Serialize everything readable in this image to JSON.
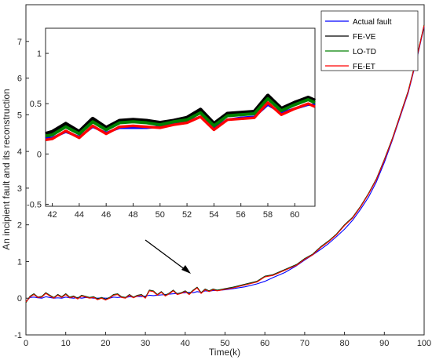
{
  "chart_data": {
    "type": "line",
    "xlabel": "Time(k)",
    "ylabel": "An incipient fault and its reconstruction",
    "xlim": [
      0,
      100
    ],
    "ylim": [
      -1,
      8
    ],
    "xticks": [
      "0",
      "10",
      "20",
      "30",
      "40",
      "50",
      "60",
      "70",
      "80",
      "90",
      "100"
    ],
    "yticks": [
      "-1",
      "0",
      "1",
      "2",
      "3",
      "4",
      "5",
      "6",
      "7"
    ],
    "grid": false,
    "legend_position": "top-right",
    "series": [
      {
        "name": "Actual fault",
        "color": "#0000ff",
        "x": [
          0,
          1,
          2,
          3,
          4,
          5,
          6,
          7,
          8,
          9,
          10,
          11,
          12,
          13,
          14,
          15,
          16,
          17,
          18,
          19,
          20,
          21,
          22,
          23,
          24,
          25,
          26,
          27,
          28,
          29,
          30,
          31,
          32,
          33,
          34,
          35,
          36,
          37,
          38,
          39,
          40,
          41,
          42,
          43,
          44,
          45,
          46,
          47,
          48,
          49,
          50,
          52,
          55,
          58,
          60,
          62,
          65,
          68,
          70,
          72,
          74,
          76,
          78,
          80,
          82,
          84,
          86,
          88,
          90,
          92,
          94,
          96,
          98,
          100
        ],
        "values": [
          -0.1,
          0.02,
          0.03,
          0.01,
          0.0,
          0.04,
          0.02,
          0.0,
          0.01,
          0.0,
          0.03,
          0.01,
          0.0,
          0.02,
          0.0,
          0.02,
          0.01,
          0.0,
          0.0,
          0.01,
          0.0,
          0.0,
          0.03,
          0.02,
          0.03,
          0.02,
          0.04,
          0.03,
          0.05,
          0.04,
          0.06,
          0.08,
          0.07,
          0.08,
          0.09,
          0.1,
          0.11,
          0.12,
          0.13,
          0.14,
          0.15,
          0.16,
          0.15,
          0.18,
          0.16,
          0.2,
          0.19,
          0.21,
          0.21,
          0.22,
          0.23,
          0.26,
          0.31,
          0.39,
          0.46,
          0.56,
          0.7,
          0.89,
          1.04,
          1.18,
          1.33,
          1.49,
          1.68,
          1.88,
          2.12,
          2.42,
          2.75,
          3.17,
          3.7,
          4.3,
          4.95,
          5.6,
          6.45,
          7.4
        ]
      },
      {
        "name": "FE-VE",
        "color": "#000000",
        "x": [
          0,
          1,
          2,
          3,
          4,
          5,
          6,
          7,
          8,
          9,
          10,
          11,
          12,
          13,
          14,
          15,
          16,
          17,
          18,
          19,
          20,
          21,
          22,
          23,
          24,
          25,
          26,
          27,
          28,
          29,
          30,
          31,
          32,
          33,
          34,
          35,
          36,
          37,
          38,
          39,
          40,
          41,
          42,
          43,
          44,
          45,
          46,
          47,
          48,
          49,
          50,
          52,
          55,
          58,
          60,
          62,
          65,
          68,
          70,
          72,
          74,
          76,
          78,
          80,
          82,
          84,
          86,
          88,
          90,
          92,
          94,
          96,
          98,
          100
        ],
        "values": [
          -0.12,
          0.05,
          0.12,
          0.03,
          0.05,
          0.15,
          0.08,
          0.02,
          0.1,
          0.04,
          0.12,
          0.03,
          0.06,
          0.0,
          0.08,
          0.05,
          0.02,
          0.04,
          -0.02,
          0.02,
          -0.03,
          0.02,
          0.1,
          0.12,
          0.04,
          0.02,
          0.1,
          0.03,
          0.08,
          0.1,
          0.02,
          0.22,
          0.2,
          0.1,
          0.18,
          0.08,
          0.14,
          0.22,
          0.12,
          0.15,
          0.2,
          0.12,
          0.22,
          0.3,
          0.15,
          0.25,
          0.2,
          0.25,
          0.22,
          0.24,
          0.26,
          0.3,
          0.38,
          0.46,
          0.6,
          0.64,
          0.78,
          0.92,
          1.08,
          1.2,
          1.4,
          1.56,
          1.75,
          2.0,
          2.2,
          2.5,
          2.85,
          3.25,
          3.78,
          4.35,
          5.0,
          5.65,
          6.5,
          7.45
        ]
      },
      {
        "name": "LO-TD",
        "color": "#008000",
        "x": [
          0,
          1,
          2,
          3,
          4,
          5,
          6,
          7,
          8,
          9,
          10,
          11,
          12,
          13,
          14,
          15,
          16,
          17,
          18,
          19,
          20,
          21,
          22,
          23,
          24,
          25,
          26,
          27,
          28,
          29,
          30,
          31,
          32,
          33,
          34,
          35,
          36,
          37,
          38,
          39,
          40,
          41,
          42,
          43,
          44,
          45,
          46,
          47,
          48,
          49,
          50,
          52,
          55,
          58,
          60,
          62,
          65,
          68,
          70,
          72,
          74,
          76,
          78,
          80,
          82,
          84,
          86,
          88,
          90,
          92,
          94,
          96,
          98,
          100
        ],
        "values": [
          -0.11,
          0.04,
          0.11,
          0.02,
          0.04,
          0.14,
          0.07,
          0.01,
          0.09,
          0.03,
          0.11,
          0.02,
          0.05,
          -0.01,
          0.07,
          0.04,
          0.01,
          0.03,
          -0.03,
          0.01,
          -0.04,
          0.01,
          0.09,
          0.11,
          0.03,
          0.01,
          0.09,
          0.02,
          0.07,
          0.09,
          0.01,
          0.21,
          0.19,
          0.09,
          0.17,
          0.07,
          0.13,
          0.21,
          0.11,
          0.14,
          0.19,
          0.11,
          0.21,
          0.29,
          0.14,
          0.24,
          0.19,
          0.24,
          0.21,
          0.23,
          0.25,
          0.29,
          0.37,
          0.45,
          0.59,
          0.63,
          0.77,
          0.91,
          1.07,
          1.19,
          1.39,
          1.55,
          1.74,
          1.99,
          2.19,
          2.49,
          2.84,
          3.24,
          3.77,
          4.34,
          4.99,
          5.64,
          6.49,
          7.44
        ]
      },
      {
        "name": "FE-ET",
        "color": "#ff0000",
        "x": [
          0,
          1,
          2,
          3,
          4,
          5,
          6,
          7,
          8,
          9,
          10,
          11,
          12,
          13,
          14,
          15,
          16,
          17,
          18,
          19,
          20,
          21,
          22,
          23,
          24,
          25,
          26,
          27,
          28,
          29,
          30,
          31,
          32,
          33,
          34,
          35,
          36,
          37,
          38,
          39,
          40,
          41,
          42,
          43,
          44,
          45,
          46,
          47,
          48,
          49,
          50,
          52,
          55,
          58,
          60,
          62,
          65,
          68,
          70,
          72,
          74,
          76,
          78,
          80,
          82,
          84,
          86,
          88,
          90,
          92,
          94,
          96,
          98,
          100
        ],
        "values": [
          -0.1,
          0.03,
          0.1,
          0.02,
          0.03,
          0.13,
          0.06,
          0.0,
          0.08,
          0.02,
          0.1,
          0.01,
          0.04,
          -0.02,
          0.06,
          0.03,
          0.0,
          0.02,
          -0.04,
          0.0,
          -0.05,
          0.0,
          0.08,
          0.1,
          0.02,
          0.0,
          0.08,
          0.01,
          0.06,
          0.08,
          0.0,
          0.2,
          0.18,
          0.08,
          0.16,
          0.06,
          0.12,
          0.2,
          0.1,
          0.13,
          0.18,
          0.1,
          0.2,
          0.28,
          0.13,
          0.23,
          0.18,
          0.23,
          0.2,
          0.22,
          0.24,
          0.28,
          0.36,
          0.44,
          0.58,
          0.62,
          0.76,
          0.9,
          1.06,
          1.18,
          1.38,
          1.54,
          1.73,
          1.98,
          2.18,
          2.48,
          2.83,
          3.23,
          3.76,
          4.33,
          4.98,
          5.63,
          6.48,
          7.43
        ]
      }
    ],
    "inset": {
      "xlim": [
        41.5,
        61.5
      ],
      "ylim": [
        -0.52,
        1.25
      ],
      "xticks": [
        "42",
        "44",
        "46",
        "48",
        "50",
        "52",
        "54",
        "56",
        "58",
        "60"
      ],
      "yticks": [
        "-0.5",
        "0",
        "0.5",
        "1"
      ],
      "x": [
        41.5,
        42,
        43,
        44,
        45,
        46,
        47,
        48,
        49,
        50,
        51,
        52,
        53,
        54,
        55,
        56,
        57,
        58,
        59,
        60,
        61,
        61.5
      ],
      "series": [
        {
          "name": "Actual fault",
          "color": "#0000ff",
          "values": [
            0.16,
            0.16,
            0.22,
            0.17,
            0.27,
            0.21,
            0.26,
            0.26,
            0.26,
            0.27,
            0.3,
            0.32,
            0.37,
            0.26,
            0.34,
            0.36,
            0.37,
            0.49,
            0.41,
            0.45,
            0.49,
            0.49
          ]
        },
        {
          "name": "FE-VE",
          "color": "#000000",
          "values": [
            0.2,
            0.22,
            0.3,
            0.22,
            0.35,
            0.26,
            0.33,
            0.34,
            0.33,
            0.31,
            0.33,
            0.36,
            0.44,
            0.3,
            0.4,
            0.41,
            0.42,
            0.58,
            0.45,
            0.51,
            0.56,
            0.53
          ]
        },
        {
          "name": "LO-TD",
          "color": "#008000",
          "values": [
            0.18,
            0.19,
            0.27,
            0.2,
            0.32,
            0.24,
            0.31,
            0.32,
            0.31,
            0.29,
            0.32,
            0.34,
            0.41,
            0.28,
            0.38,
            0.39,
            0.4,
            0.55,
            0.43,
            0.49,
            0.54,
            0.51
          ]
        },
        {
          "name": "FE-ET",
          "color": "#ff0000",
          "values": [
            0.14,
            0.15,
            0.23,
            0.16,
            0.28,
            0.2,
            0.27,
            0.28,
            0.27,
            0.26,
            0.29,
            0.31,
            0.37,
            0.24,
            0.34,
            0.35,
            0.36,
            0.51,
            0.39,
            0.45,
            0.5,
            0.47
          ]
        }
      ]
    }
  }
}
